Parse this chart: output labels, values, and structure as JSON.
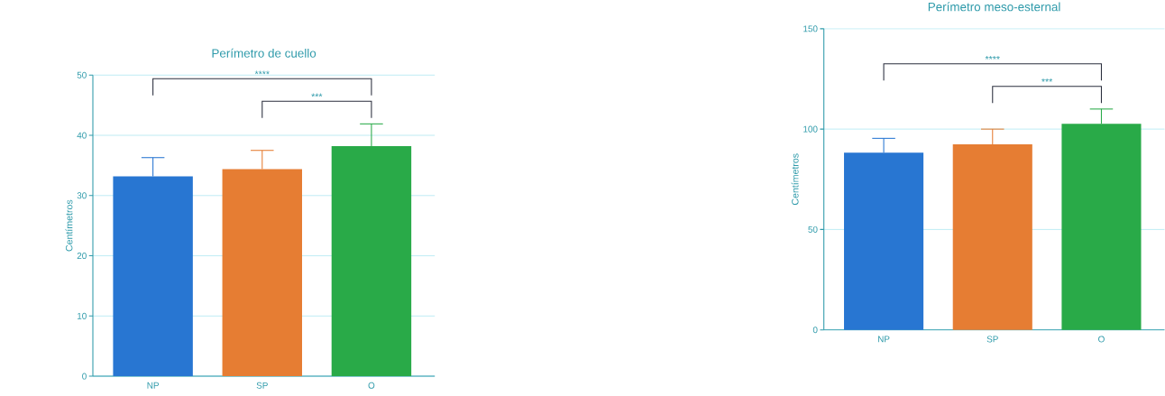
{
  "chart_data": [
    {
      "type": "bar",
      "title": "Perímetro de cuello",
      "ylabel": "Centímetros",
      "categories": [
        "NP",
        "SP",
        "O"
      ],
      "values": [
        33.2,
        34.4,
        38.2
      ],
      "errors": [
        3.1,
        3.1,
        3.7
      ],
      "colors": [
        "#2876d2",
        "#e67d33",
        "#29aa48"
      ],
      "ylim": [
        0,
        50
      ],
      "yticks": [
        0,
        10,
        20,
        30,
        40,
        50
      ],
      "grid": "y",
      "annotations": [
        "****",
        "***"
      ]
    },
    {
      "type": "bar",
      "title": "Perímetro meso-esternal",
      "ylabel": "Centímetros",
      "categories": [
        "NP",
        "SP",
        "O"
      ],
      "values": [
        88.3,
        92.4,
        102.6
      ],
      "errors": [
        7.1,
        7.6,
        7.4
      ],
      "colors": [
        "#2876d2",
        "#e67d33",
        "#29aa48"
      ],
      "ylim": [
        0,
        150
      ],
      "yticks": [
        0,
        50,
        100,
        150
      ],
      "grid": "y",
      "annotations": [
        "****",
        "***"
      ]
    }
  ]
}
